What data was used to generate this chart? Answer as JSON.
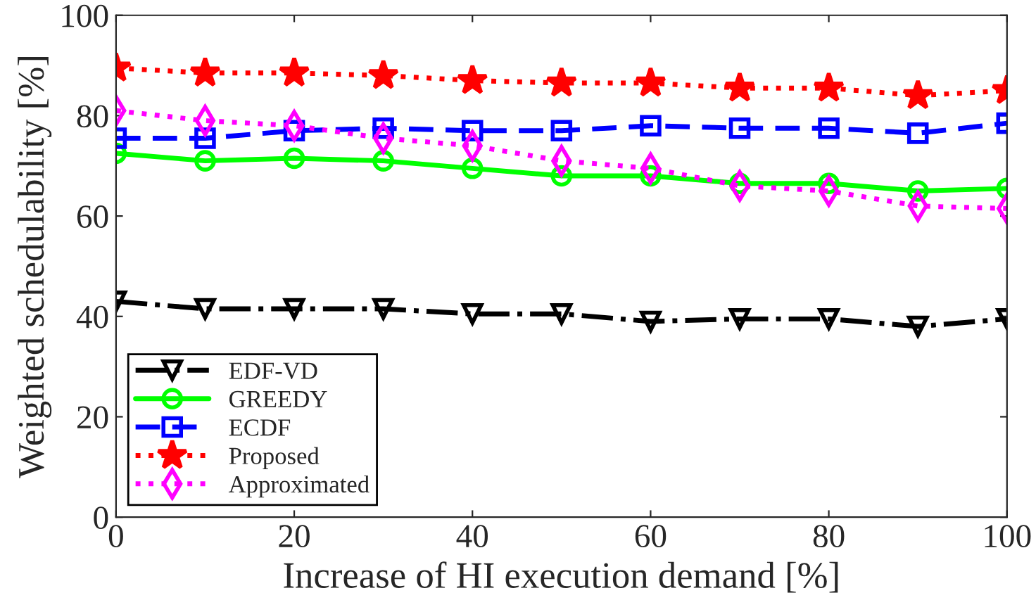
{
  "chart_data": {
    "type": "line",
    "xlabel": "Increase of HI execution demand [%]",
    "ylabel": "Weighted schedulability [%]",
    "x": [
      0,
      10,
      20,
      30,
      40,
      50,
      60,
      70,
      80,
      90,
      100
    ],
    "xlim": [
      0,
      100
    ],
    "xticks": [
      0,
      20,
      40,
      60,
      80,
      100
    ],
    "ylim": [
      0,
      100
    ],
    "yticks": [
      0,
      20,
      40,
      60,
      80,
      100
    ],
    "grid": false,
    "legend": "bottom left",
    "series": [
      {
        "name": "EDF-VD",
        "color": "#000000",
        "marker": "triangle_down",
        "line_style": "dashdot",
        "values": [
          43,
          41.5,
          41.5,
          41.5,
          40.5,
          40.5,
          39,
          39.5,
          39.5,
          38,
          39.5
        ]
      },
      {
        "name": "GREEDY",
        "color": "#00ff00",
        "marker": "circle",
        "line_style": "solid",
        "values": [
          72.5,
          71,
          71.5,
          71,
          69.5,
          68,
          68,
          66.5,
          66.5,
          65,
          65.5
        ]
      },
      {
        "name": "ECDF",
        "color": "#0000ff",
        "marker": "square",
        "line_style": "dashed",
        "values": [
          75.5,
          75.5,
          77,
          77.5,
          77,
          77,
          78,
          77.5,
          77.5,
          76.5,
          78.5
        ]
      },
      {
        "name": "Proposed",
        "color": "#ff0000",
        "marker": "star",
        "line_style": "dotted",
        "values": [
          89.5,
          88.5,
          88.5,
          88,
          87,
          86.5,
          86.5,
          85.5,
          85.5,
          84,
          85
        ]
      },
      {
        "name": "Approximated",
        "color": "#ff00ff",
        "marker": "diamond",
        "line_style": "dotted",
        "values": [
          81,
          79,
          78,
          75.5,
          74,
          71,
          69.5,
          66,
          65,
          62,
          61.5
        ]
      }
    ]
  }
}
